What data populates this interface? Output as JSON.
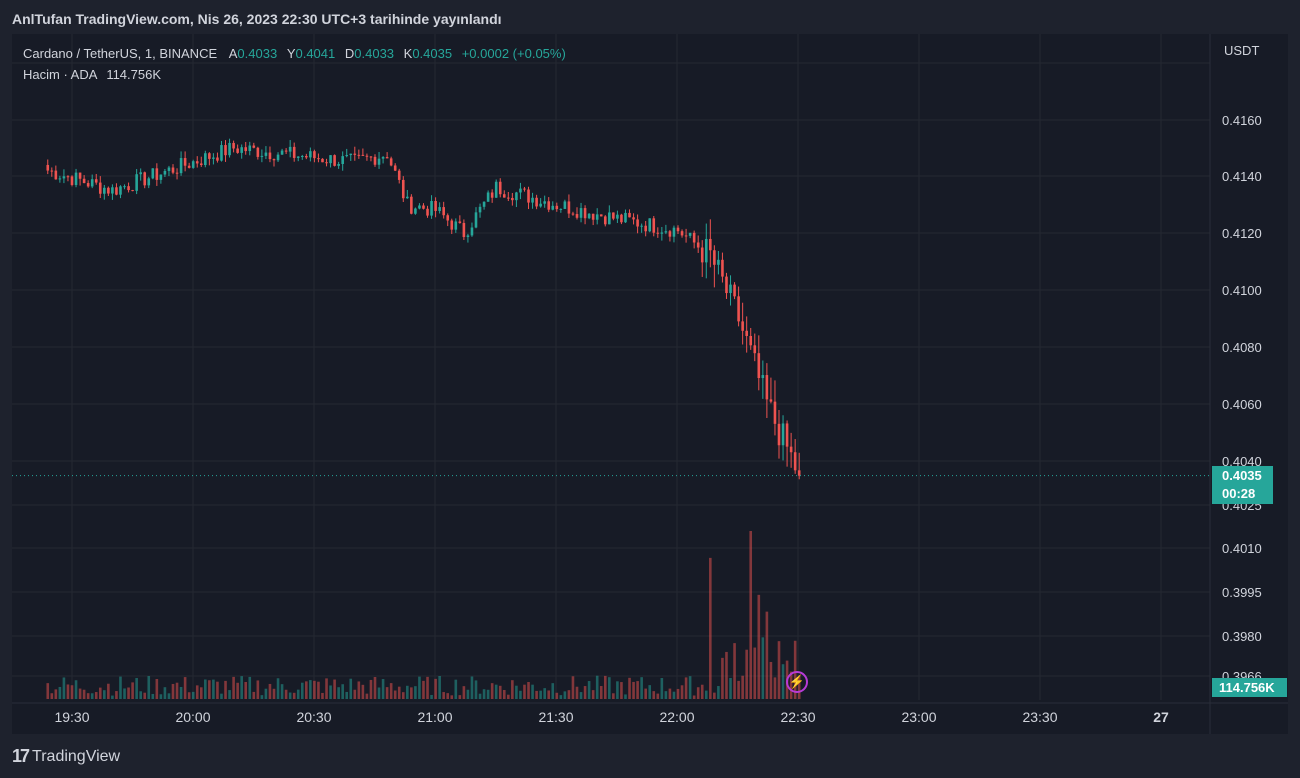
{
  "header": {
    "published": "AnlTufan TradingView.com, Nis 26, 2023 22:30 UTC+3 tarihinde yayınlandı"
  },
  "legend": {
    "symbol": "Cardano / TetherUS, 1, BINANCE",
    "open_label": "A",
    "open": "0.4033",
    "high_label": "Y",
    "high": "0.4041",
    "low_label": "D",
    "low": "0.4033",
    "close_label": "K",
    "close": "0.4035",
    "change": "+0.0002 (+0.05%)",
    "volume_label": "Hacim · ADA",
    "volume": "114.756K"
  },
  "price_axis": {
    "currency": "USDT",
    "current_price": "0.4035",
    "countdown": "00:28",
    "current_volume": "114.756K"
  },
  "footer": {
    "brand": "TradingView",
    "logo_icon": "tradingview-logo-icon"
  },
  "colors": {
    "up": "#26a69a",
    "down": "#ef5350",
    "background": "#171b26",
    "grid": "#242832",
    "accent_bolt": "#b73bd6"
  },
  "chart_data": {
    "type": "candlestick",
    "timeframe": "1m",
    "x_tick_labels": [
      "19:30",
      "20:00",
      "20:30",
      "21:00",
      "21:30",
      "22:00",
      "22:30",
      "23:00",
      "23:30",
      "27"
    ],
    "y_tick_labels": [
      "0.4160",
      "0.4140",
      "0.4120",
      "0.4100",
      "0.4080",
      "0.4060",
      "0.4040",
      "0.4025",
      "0.4010",
      "0.3995",
      "0.3980",
      "0.3966"
    ],
    "y_tick_values": [
      0.416,
      0.414,
      0.412,
      0.41,
      0.408,
      0.406,
      0.404,
      0.4025,
      0.401,
      0.3995,
      0.398,
      0.3966
    ],
    "y_top_value": 0.418,
    "current_price": 0.4035,
    "key_points": [
      {
        "time": "19:24",
        "price": 0.4142
      },
      {
        "time": "19:40",
        "price": 0.4135
      },
      {
        "time": "20:00",
        "price": 0.4145
      },
      {
        "time": "20:10",
        "price": 0.415
      },
      {
        "time": "20:40",
        "price": 0.4145
      },
      {
        "time": "20:48",
        "price": 0.4148
      },
      {
        "time": "20:53",
        "price": 0.413
      },
      {
        "time": "21:00",
        "price": 0.4128
      },
      {
        "time": "21:07",
        "price": 0.412
      },
      {
        "time": "21:15",
        "price": 0.4136
      },
      {
        "time": "21:30",
        "price": 0.413
      },
      {
        "time": "21:45",
        "price": 0.4125
      },
      {
        "time": "22:00",
        "price": 0.4121
      },
      {
        "time": "22:08",
        "price": 0.4112
      },
      {
        "time": "22:15",
        "price": 0.409
      },
      {
        "time": "22:22",
        "price": 0.406
      },
      {
        "time": "22:30",
        "price": 0.4035
      }
    ],
    "volume_spikes": [
      {
        "time": "22:08",
        "volume_share": 0.84
      },
      {
        "time": "22:18",
        "volume_share": 1.0
      },
      {
        "time": "22:20",
        "volume_share": 0.62
      },
      {
        "time": "22:22",
        "volume_share": 0.52
      }
    ]
  }
}
